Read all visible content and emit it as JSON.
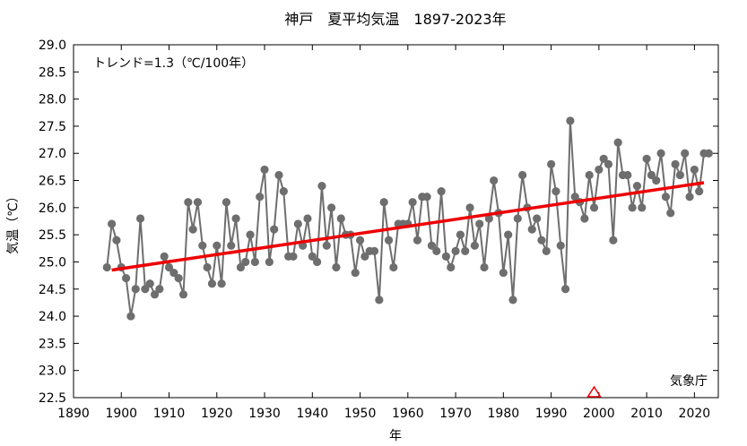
{
  "chart_data": {
    "type": "line",
    "title": "神戸　夏平均気温　1897-2023年",
    "xlabel": "年",
    "ylabel": "気温（℃）",
    "xlim": [
      1890,
      2025
    ],
    "ylim": [
      22.5,
      29.0
    ],
    "x_ticks": [
      1890,
      1900,
      1910,
      1920,
      1930,
      1940,
      1950,
      1960,
      1970,
      1980,
      1990,
      2000,
      2010,
      2020
    ],
    "y_ticks": [
      22.5,
      23.0,
      23.5,
      24.0,
      24.5,
      25.0,
      25.5,
      26.0,
      26.5,
      27.0,
      27.5,
      28.0,
      28.5,
      29.0
    ],
    "grid": false,
    "annotation": "トレンド=1.3（℃/100年）",
    "credit": "気象庁",
    "marker_year": 1999,
    "colors": {
      "series": "#6e6e6e",
      "trend": "#ee0000",
      "marker": "#ee0000"
    },
    "series": [
      {
        "x": [
          1897,
          1898,
          1899,
          1900,
          1901,
          1902,
          1903,
          1904,
          1905,
          1906,
          1907,
          1908,
          1909,
          1910,
          1911,
          1912,
          1913,
          1914,
          1915,
          1916,
          1917,
          1918,
          1919,
          1920,
          1921,
          1922,
          1923,
          1924,
          1925,
          1926,
          1927,
          1928,
          1929,
          1930,
          1931,
          1932,
          1933,
          1934,
          1935,
          1936,
          1937,
          1938,
          1939,
          1940,
          1941,
          1942,
          1943,
          1944,
          1945,
          1946,
          1947,
          1948,
          1949,
          1950,
          1951,
          1952,
          1953,
          1954,
          1955,
          1956,
          1957,
          1958,
          1959,
          1960,
          1961,
          1962,
          1963,
          1964,
          1965,
          1966,
          1967,
          1968,
          1969,
          1970,
          1971,
          1972,
          1973,
          1974,
          1975,
          1976,
          1977,
          1978,
          1979,
          1980,
          1981,
          1982,
          1983,
          1984,
          1985,
          1986,
          1987,
          1988,
          1989,
          1990,
          1991,
          1992,
          1993,
          1994,
          1995,
          1996,
          1997,
          1998,
          1999,
          2000,
          2001,
          2002,
          2003,
          2004,
          2005,
          2006,
          2007,
          2008,
          2009,
          2010,
          2011,
          2012,
          2013,
          2014,
          2015,
          2016,
          2017,
          2018,
          2019,
          2020,
          2021,
          2022,
          2023
        ],
        "values": [
          24.9,
          25.7,
          25.4,
          24.9,
          24.7,
          24.0,
          24.5,
          25.8,
          24.5,
          24.6,
          24.4,
          24.5,
          25.1,
          24.9,
          24.8,
          24.7,
          24.4,
          26.1,
          25.6,
          26.1,
          25.3,
          24.9,
          24.6,
          25.3,
          24.6,
          26.1,
          25.3,
          25.8,
          24.9,
          25.0,
          25.5,
          25.0,
          26.2,
          26.7,
          25.0,
          25.6,
          26.6,
          26.3,
          25.1,
          25.1,
          25.7,
          25.3,
          25.8,
          25.1,
          25.0,
          26.4,
          25.3,
          26.0,
          24.9,
          25.8,
          25.5,
          25.5,
          24.8,
          25.4,
          25.1,
          25.2,
          25.2,
          24.3,
          26.1,
          25.4,
          24.9,
          25.7,
          25.7,
          25.7,
          26.1,
          25.4,
          26.2,
          26.2,
          25.3,
          25.2,
          26.3,
          25.1,
          24.9,
          25.2,
          25.5,
          25.2,
          26.0,
          25.3,
          25.7,
          24.9,
          25.8,
          26.5,
          25.9,
          24.8,
          25.5,
          24.3,
          25.8,
          26.6,
          26.0,
          25.6,
          25.8,
          25.4,
          25.2,
          26.8,
          26.3,
          25.3,
          24.5,
          27.6,
          26.2,
          26.1,
          25.8,
          26.6,
          26.0,
          26.7,
          26.9,
          26.8,
          25.4,
          27.2,
          26.6,
          26.6,
          26.0,
          26.4,
          26.0,
          26.9,
          26.6,
          26.5,
          27.0,
          26.2,
          25.9,
          26.8,
          26.6,
          27.0,
          26.2,
          26.7,
          26.3,
          27.0,
          27.0
        ]
      }
    ],
    "trend": {
      "x": [
        1898,
        2022
      ],
      "values": [
        24.85,
        26.46
      ]
    }
  }
}
